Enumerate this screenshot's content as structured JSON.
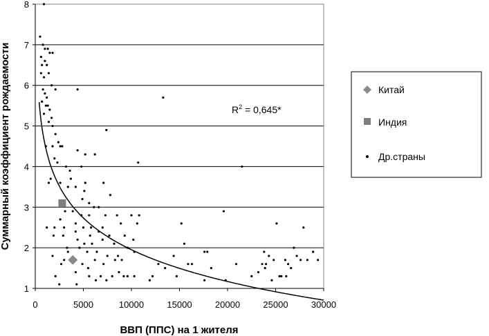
{
  "chart_data": {
    "type": "scatter",
    "title": "",
    "xlabel": "ВВП (ППС) на 1 жителя",
    "ylabel": "Суммарный коэффициент рождаемости",
    "xlim": [
      0,
      30000
    ],
    "ylim": [
      1,
      8
    ],
    "x_ticks": [
      "0",
      "5000",
      "10000",
      "15000",
      "20000",
      "25000",
      "30000"
    ],
    "y_ticks": [
      "1",
      "2",
      "3",
      "4",
      "5",
      "6",
      "7",
      "8"
    ],
    "grid": "horizontal",
    "legend_position": "right",
    "annotation": {
      "r2_prefix": "R",
      "r2_sup": "2",
      "r2_value": " = 0,645*"
    },
    "colors": {
      "china": "#8a8a8a",
      "india": "#7f7f7f",
      "other": "#000000",
      "trend": "#000000",
      "grid": "#000000"
    },
    "series": [
      {
        "name": "Китай",
        "marker": "diamond",
        "points": [
          [
            3900,
            1.7
          ]
        ]
      },
      {
        "name": "Индия",
        "marker": "square",
        "points": [
          [
            2800,
            3.1
          ]
        ]
      },
      {
        "name": "Др.страны",
        "marker": "dot",
        "points": [
          [
            900,
            8.0
          ],
          [
            500,
            7.2
          ],
          [
            800,
            7.0
          ],
          [
            1000,
            6.9
          ],
          [
            1300,
            6.9
          ],
          [
            1500,
            6.8
          ],
          [
            1800,
            6.8
          ],
          [
            600,
            6.7
          ],
          [
            700,
            6.5
          ],
          [
            1000,
            6.6
          ],
          [
            1200,
            6.5
          ],
          [
            1400,
            6.3
          ],
          [
            600,
            6.3
          ],
          [
            900,
            6.2
          ],
          [
            1700,
            6.0
          ],
          [
            2100,
            5.9
          ],
          [
            4400,
            5.9
          ],
          [
            800,
            5.9
          ],
          [
            1000,
            5.8
          ],
          [
            1200,
            5.7
          ],
          [
            700,
            5.6
          ],
          [
            1100,
            5.5
          ],
          [
            1300,
            5.5
          ],
          [
            1500,
            5.4
          ],
          [
            900,
            5.3
          ],
          [
            1700,
            5.2
          ],
          [
            1400,
            5.1
          ],
          [
            1800,
            5.0
          ],
          [
            2100,
            4.8
          ],
          [
            2400,
            4.6
          ],
          [
            1100,
            4.5
          ],
          [
            1800,
            4.5
          ],
          [
            2600,
            4.5
          ],
          [
            2800,
            4.5
          ],
          [
            2000,
            4.2
          ],
          [
            2300,
            4.1
          ],
          [
            3200,
            4.0
          ],
          [
            4400,
            4.4
          ],
          [
            5200,
            4.3
          ],
          [
            6200,
            4.3
          ],
          [
            3600,
            3.9
          ],
          [
            4800,
            4.0
          ],
          [
            1600,
            3.7
          ],
          [
            3700,
            3.7
          ],
          [
            5200,
            3.6
          ],
          [
            7400,
            4.9
          ],
          [
            1400,
            3.6
          ],
          [
            2600,
            3.6
          ],
          [
            3400,
            3.5
          ],
          [
            4200,
            3.5
          ],
          [
            5100,
            3.4
          ],
          [
            7800,
            3.3
          ],
          [
            4900,
            3.2
          ],
          [
            5600,
            3.1
          ],
          [
            6100,
            3.0
          ],
          [
            6600,
            3.0
          ],
          [
            7100,
            3.6
          ],
          [
            3100,
            2.9
          ],
          [
            3900,
            2.9
          ],
          [
            4800,
            2.8
          ],
          [
            5600,
            2.8
          ],
          [
            7300,
            2.8
          ],
          [
            8500,
            2.8
          ],
          [
            10000,
            2.8
          ],
          [
            10800,
            2.8
          ],
          [
            2600,
            2.7
          ],
          [
            4200,
            2.6
          ],
          [
            5000,
            2.5
          ],
          [
            5800,
            2.5
          ],
          [
            7000,
            2.5
          ],
          [
            8900,
            2.6
          ],
          [
            10600,
            2.6
          ],
          [
            1200,
            2.5
          ],
          [
            2000,
            2.5
          ],
          [
            3000,
            2.5
          ],
          [
            1900,
            2.3
          ],
          [
            2900,
            2.3
          ],
          [
            4200,
            2.4
          ],
          [
            5700,
            2.3
          ],
          [
            6600,
            2.4
          ],
          [
            7700,
            2.3
          ],
          [
            9300,
            2.3
          ],
          [
            10200,
            2.2
          ],
          [
            4400,
            2.2
          ],
          [
            5100,
            2.1
          ],
          [
            5900,
            2.1
          ],
          [
            7000,
            2.2
          ],
          [
            8200,
            2.1
          ],
          [
            9600,
            2.0
          ],
          [
            3300,
            2.0
          ],
          [
            4600,
            2.0
          ],
          [
            5400,
            1.9
          ],
          [
            6400,
            1.9
          ],
          [
            7500,
            1.8
          ],
          [
            8600,
            1.8
          ],
          [
            10300,
            1.9
          ],
          [
            1800,
            1.8
          ],
          [
            3000,
            1.7
          ],
          [
            3400,
            1.9
          ],
          [
            4900,
            1.6
          ],
          [
            5500,
            1.5
          ],
          [
            6200,
            1.7
          ],
          [
            7100,
            1.6
          ],
          [
            8300,
            1.7
          ],
          [
            9000,
            1.7
          ],
          [
            2700,
            1.6
          ],
          [
            4200,
            1.4
          ],
          [
            5600,
            1.3
          ],
          [
            6300,
            1.2
          ],
          [
            6800,
            1.3
          ],
          [
            7400,
            1.2
          ],
          [
            8000,
            1.3
          ],
          [
            8700,
            1.4
          ],
          [
            9200,
            1.3
          ],
          [
            9600,
            1.3
          ],
          [
            10300,
            1.3
          ],
          [
            11900,
            1.2
          ],
          [
            12200,
            1.3
          ],
          [
            12800,
            1.6
          ],
          [
            13500,
            1.5
          ],
          [
            2100,
            1.3
          ],
          [
            2500,
            1.1
          ],
          [
            4300,
            1.1
          ],
          [
            13300,
            5.7
          ],
          [
            10700,
            4.1
          ],
          [
            21500,
            4.0
          ],
          [
            19600,
            2.9
          ],
          [
            15200,
            2.6
          ],
          [
            25100,
            2.6
          ],
          [
            15500,
            2.1
          ],
          [
            27900,
            2.5
          ],
          [
            26900,
            2.0
          ],
          [
            17600,
            1.9
          ],
          [
            17900,
            1.9
          ],
          [
            18300,
            1.5
          ],
          [
            15900,
            1.6
          ],
          [
            14400,
            1.8
          ],
          [
            16300,
            1.6
          ],
          [
            19800,
            1.2
          ],
          [
            17600,
            1.2
          ],
          [
            14700,
            1.3
          ],
          [
            20900,
            1.6
          ],
          [
            22500,
            1.3
          ],
          [
            23200,
            1.4
          ],
          [
            23600,
            1.6
          ],
          [
            23800,
            1.9
          ],
          [
            24000,
            1.6
          ],
          [
            24300,
            1.8
          ],
          [
            24800,
            1.7
          ],
          [
            25400,
            1.3
          ],
          [
            25600,
            1.3
          ],
          [
            26000,
            1.7
          ],
          [
            26300,
            1.6
          ],
          [
            26600,
            1.5
          ],
          [
            27200,
            1.8
          ],
          [
            27600,
            1.7
          ],
          [
            28300,
            1.7
          ],
          [
            28900,
            1.9
          ],
          [
            29400,
            1.7
          ],
          [
            24600,
            1.2
          ],
          [
            26100,
            1.3
          ],
          [
            23900,
            1.5
          ]
        ]
      }
    ],
    "trendline": {
      "type": "logarithmic",
      "a": 12.36,
      "b": -1.13
    }
  }
}
